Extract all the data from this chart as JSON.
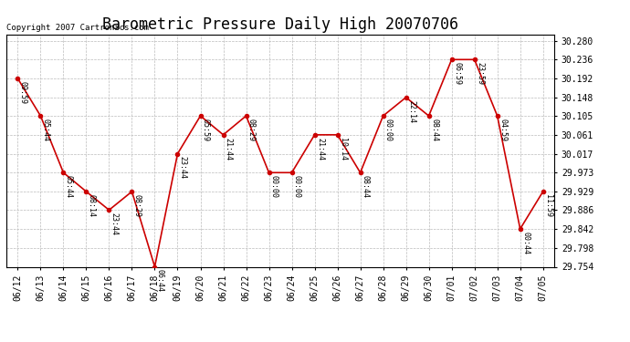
{
  "title": "Barometric Pressure Daily High 20070706",
  "copyright": "Copyright 2007 Cartronics.com",
  "x_labels": [
    "06/12",
    "06/13",
    "06/14",
    "06/15",
    "06/16",
    "06/17",
    "06/18",
    "06/19",
    "06/20",
    "06/21",
    "06/22",
    "06/23",
    "06/24",
    "06/25",
    "06/26",
    "06/27",
    "06/28",
    "06/29",
    "06/30",
    "07/01",
    "07/02",
    "07/03",
    "07/04",
    "07/05"
  ],
  "y_values": [
    30.192,
    30.105,
    29.973,
    29.929,
    29.886,
    29.929,
    29.754,
    30.017,
    30.105,
    30.061,
    30.105,
    29.973,
    29.973,
    30.061,
    30.061,
    29.973,
    30.105,
    30.148,
    30.105,
    30.236,
    30.236,
    30.105,
    29.842,
    29.929
  ],
  "time_labels": [
    "09:59",
    "05:44",
    "05:44",
    "08:14",
    "23:44",
    "08:29",
    "06:44",
    "23:44",
    "05:59",
    "21:44",
    "08:29",
    "00:00",
    "00:00",
    "21:44",
    "10:14",
    "08:44",
    "00:00",
    "22:14",
    "08:44",
    "06:59",
    "23:59",
    "04:59",
    "00:44",
    "11:59"
  ],
  "y_ticks": [
    29.754,
    29.798,
    29.842,
    29.886,
    29.929,
    29.973,
    30.017,
    30.061,
    30.105,
    30.148,
    30.192,
    30.236,
    30.28
  ],
  "y_min": 29.754,
  "y_max": 30.295,
  "line_color": "#cc0000",
  "marker_color": "#cc0000",
  "bg_color": "#ffffff",
  "grid_color": "#bbbbbb",
  "title_fontsize": 12,
  "copyright_fontsize": 6.5,
  "label_fontsize": 6,
  "tick_fontsize": 7
}
